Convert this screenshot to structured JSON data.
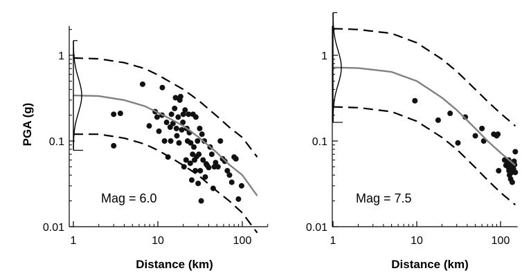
{
  "figure": {
    "ylabel": "PGA (g)"
  },
  "chart_data": [
    {
      "type": "scatter",
      "xlabel": "Distance (km)",
      "ylabel": "PGA (g)",
      "xscale": "log",
      "yscale": "log",
      "xlim": [
        0.95,
        200
      ],
      "ylim": [
        0.0085,
        2.2
      ],
      "xticks": [
        1,
        10,
        100
      ],
      "yticks": [
        0.01,
        0.1,
        1
      ],
      "annotation": "Mag = 6.0",
      "series": [
        {
          "kind": "points",
          "color": "#111111",
          "x": [
            3.0,
            3.6,
            6.6,
            7.9,
            9.3,
            9.8,
            10.3,
            11.2,
            11.3,
            12.0,
            12.7,
            13.2,
            14.0,
            14.2,
            14.5,
            15.1,
            15.8,
            16.2,
            16.6,
            16.8,
            17.4,
            17.8,
            18.2,
            18.6,
            19.2,
            19.8,
            20.0,
            20.4,
            21.0,
            21.6,
            22.0,
            22.5,
            23.1,
            23.6,
            24.2,
            24.5,
            25.2,
            25.8,
            26.1,
            26.7,
            27.2,
            27.8,
            28.2,
            28.8,
            29.5,
            30.0,
            30.6,
            31.3,
            31.8,
            32.6,
            33.3,
            34.3,
            35.5,
            36.4,
            37.4,
            38.3,
            40.0,
            41.6,
            43.5,
            45.2,
            46.7,
            48.3,
            51.5,
            55.0,
            58.5,
            62.0,
            66.5,
            70.5,
            75.0,
            80.0,
            84.0,
            90.0,
            98.0,
            3.0
          ],
          "y": [
            0.205,
            0.21,
            0.46,
            0.15,
            0.22,
            0.19,
            0.13,
            0.2,
            0.42,
            0.1,
            0.165,
            0.065,
            0.145,
            0.1,
            0.205,
            0.16,
            0.24,
            0.32,
            0.14,
            0.115,
            0.19,
            0.095,
            0.3,
            0.33,
            0.135,
            0.165,
            0.205,
            0.05,
            0.23,
            0.06,
            0.14,
            0.1,
            0.205,
            0.125,
            0.055,
            0.095,
            0.035,
            0.07,
            0.205,
            0.085,
            0.06,
            0.045,
            0.19,
            0.066,
            0.1,
            0.032,
            0.07,
            0.14,
            0.045,
            0.02,
            0.12,
            0.06,
            0.1,
            0.038,
            0.054,
            0.052,
            0.049,
            0.085,
            0.07,
            0.028,
            0.05,
            0.056,
            0.05,
            0.1,
            0.062,
            0.058,
            0.045,
            0.04,
            0.033,
            0.065,
            0.062,
            0.021,
            0.03,
            0.088
          ]
        },
        {
          "kind": "median",
          "color": "#808080",
          "x": [
            1,
            2,
            4,
            7,
            10,
            15,
            20,
            30,
            50,
            70,
            100,
            150
          ],
          "y": [
            0.34,
            0.335,
            0.3,
            0.255,
            0.215,
            0.175,
            0.15,
            0.112,
            0.073,
            0.053,
            0.04,
            0.023
          ]
        },
        {
          "kind": "upper-bound",
          "color": "#000000",
          "x": [
            1,
            2,
            4,
            7,
            10,
            15,
            20,
            30,
            50,
            70,
            100,
            150
          ],
          "y": [
            0.93,
            0.91,
            0.82,
            0.7,
            0.59,
            0.47,
            0.4,
            0.3,
            0.195,
            0.145,
            0.11,
            0.065
          ]
        },
        {
          "kind": "lower-bound",
          "color": "#000000",
          "x": [
            1,
            2,
            4,
            7,
            10,
            15,
            20,
            30,
            50,
            70,
            100,
            150
          ],
          "y": [
            0.12,
            0.12,
            0.108,
            0.092,
            0.078,
            0.062,
            0.052,
            0.04,
            0.026,
            0.02,
            0.0145,
            0.0085
          ]
        }
      ],
      "distribution": {
        "x": 1.0,
        "median": 0.34,
        "sigma_log10": 0.2
      }
    },
    {
      "type": "scatter",
      "xlabel": "Distance (km)",
      "xscale": "log",
      "yscale": "log",
      "xlim": [
        0.95,
        160
      ],
      "ylim": [
        0.0085,
        2.2
      ],
      "xticks": [
        1,
        10,
        100
      ],
      "yticks": [
        0.01,
        0.1,
        1
      ],
      "annotation": "Mag = 7.5",
      "series": [
        {
          "kind": "points",
          "color": "#111111",
          "x": [
            9.5,
            18.0,
            25.0,
            31.0,
            38.0,
            50.0,
            60.0,
            63.0,
            83.0,
            90.0,
            93.0,
            95.0,
            112.0,
            116.0,
            120.0,
            123.0,
            126.0,
            128.0,
            130.0,
            133.0,
            136.0,
            139.0,
            143.0,
            147.0,
            150.0,
            125.0,
            132.0,
            138.0,
            145.0,
            150.0
          ],
          "y": [
            0.295,
            0.175,
            0.21,
            0.095,
            0.19,
            0.115,
            0.14,
            0.1,
            0.12,
            0.115,
            0.12,
            0.045,
            0.06,
            0.052,
            0.056,
            0.05,
            0.045,
            0.04,
            0.055,
            0.048,
            0.043,
            0.05,
            0.047,
            0.053,
            0.075,
            0.06,
            0.036,
            0.033,
            0.058,
            0.043
          ]
        },
        {
          "kind": "median",
          "color": "#808080",
          "x": [
            1,
            2,
            5,
            10,
            20,
            30,
            50,
            70,
            100,
            150
          ],
          "y": [
            0.72,
            0.71,
            0.64,
            0.5,
            0.32,
            0.23,
            0.14,
            0.1,
            0.073,
            0.052
          ]
        },
        {
          "kind": "upper-bound",
          "color": "#000000",
          "x": [
            1,
            2,
            5,
            10,
            20,
            30,
            50,
            70,
            100,
            150
          ],
          "y": [
            2.05,
            2.0,
            1.8,
            1.4,
            0.9,
            0.65,
            0.4,
            0.29,
            0.21,
            0.15
          ]
        },
        {
          "kind": "lower-bound",
          "color": "#000000",
          "x": [
            1,
            2,
            5,
            10,
            20,
            30,
            50,
            70,
            100,
            150
          ],
          "y": [
            0.25,
            0.245,
            0.22,
            0.17,
            0.11,
            0.08,
            0.049,
            0.035,
            0.025,
            0.018
          ]
        }
      ],
      "distribution": {
        "x": 1.0,
        "median": 0.72,
        "sigma_log10": 0.2
      }
    }
  ]
}
